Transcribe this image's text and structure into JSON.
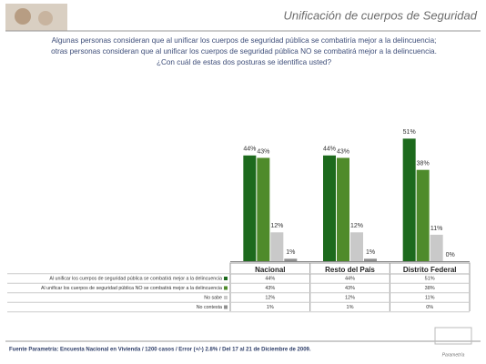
{
  "chart_data": {
    "type": "bar",
    "title": "Unificación de cuerpos de Seguridad",
    "question": [
      "Algunas personas consideran que al unificar los cuerpos de seguridad pública se combatiría mejor a la delincuencia;",
      "otras personas consideran que al unificar los cuerpos de seguridad pública NO se combatirá  mejor a la delincuencia.",
      "¿Con cuál de estas dos posturas se identifica usted?"
    ],
    "categories": [
      "Nacional",
      "Resto del País",
      "Distrito Federal"
    ],
    "series": [
      {
        "name": "Al unificar los cuerpos de seguridad pública se combatirá mejor a la delincuencia",
        "color": "#1d6a1d",
        "values": [
          44,
          44,
          51
        ],
        "value_labels": [
          "44%",
          "44%",
          "51%"
        ]
      },
      {
        "name": "Al unificar los cuerpos de seguridad pública NO se combatirá  mejor a la delincuencia",
        "color": "#4f8b2b",
        "values": [
          43,
          43,
          38
        ],
        "value_labels": [
          "43%",
          "43%",
          "38%"
        ]
      },
      {
        "name": "No sabe",
        "color": "#c9c9c9",
        "values": [
          12,
          12,
          11
        ],
        "value_labels": [
          "12%",
          "12%",
          "11%"
        ]
      },
      {
        "name": "No contesta",
        "color": "#8f8f8f",
        "values": [
          1,
          1,
          0
        ],
        "value_labels": [
          "1%",
          "1%",
          "0%"
        ]
      }
    ],
    "source": "Fuente Parametría: Encuesta Nacional en Vivienda / 1200 casos / Error (+/-) 2.8% / Del 17 al 21 de Diciembre de 2009.",
    "logo": "Parametría"
  }
}
